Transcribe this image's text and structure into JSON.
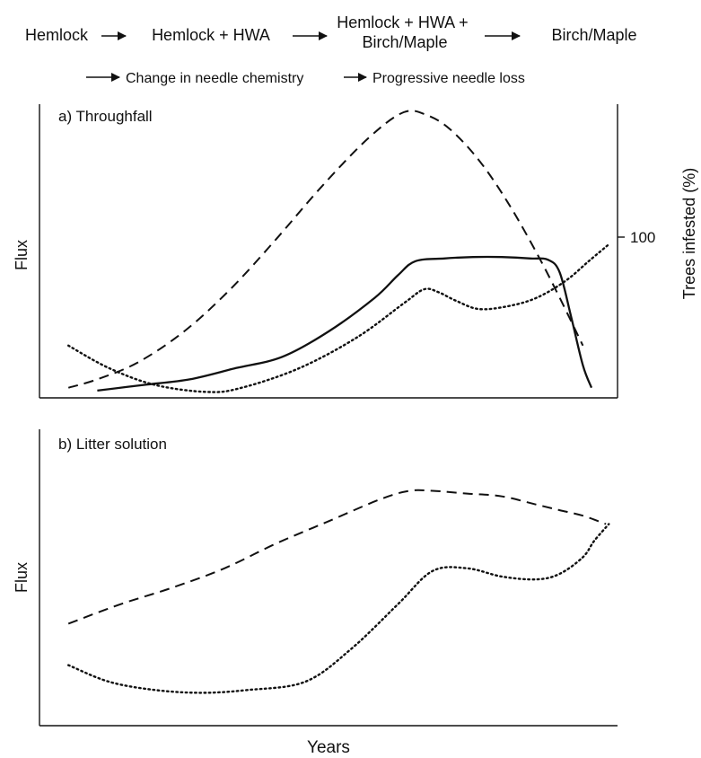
{
  "sequence": {
    "row1": [
      "Hemlock",
      "Hemlock + HWA",
      "Hemlock + HWA +|Birch/Maple",
      "Birch/Maple"
    ],
    "row2": [
      "Change in needle chemistry",
      "Progressive needle loss"
    ]
  },
  "chart_data": [
    {
      "type": "line",
      "panel_label": "a) Throughfall",
      "xlabel": "",
      "ylabel": "Flux",
      "y2label": "Trees infested (%)",
      "y2ticks": [
        100
      ],
      "xlim": [
        0,
        100
      ],
      "ylim": [
        0,
        100
      ],
      "grid": false,
      "series": [
        {
          "style": "dashed",
          "color": "#111111",
          "x": [
            5,
            10,
            17,
            25,
            33,
            41,
            49,
            57,
            63,
            67,
            71,
            76,
            81,
            86,
            90,
            94
          ],
          "y": [
            2,
            5,
            11,
            22,
            37,
            55,
            74,
            91,
            100,
            99,
            94,
            83,
            68,
            50,
            34,
            17
          ]
        },
        {
          "style": "solid",
          "color": "#111111",
          "x": [
            10,
            18,
            26,
            34,
            42,
            50,
            58,
            62,
            65,
            70,
            75,
            80,
            85,
            88,
            90,
            92,
            94,
            95.5
          ],
          "y": [
            1,
            3,
            5,
            9,
            13,
            22,
            34,
            42,
            47,
            48,
            48.5,
            48.5,
            48,
            47.5,
            43,
            27,
            10,
            2
          ]
        },
        {
          "style": "dotted",
          "color": "#111111",
          "x": [
            5,
            12,
            20,
            29,
            35,
            45,
            55,
            63,
            66.5,
            69,
            72,
            76,
            81,
            86,
            91,
            95,
            98.5
          ],
          "y": [
            17,
            9,
            3,
            0.5,
            2,
            9,
            20,
            32,
            37,
            36,
            33,
            30,
            31,
            34,
            40,
            47,
            53
          ]
        }
      ]
    },
    {
      "type": "line",
      "panel_label": "b) Litter solution",
      "xlabel": "Years",
      "ylabel": "Flux",
      "xlim": [
        0,
        100
      ],
      "ylim": [
        0,
        100
      ],
      "grid": false,
      "series": [
        {
          "style": "dashed",
          "color": "#111111",
          "x": [
            5,
            14,
            23,
            32,
            41,
            50,
            59,
            64,
            68,
            74,
            80,
            86,
            90,
            94,
            98
          ],
          "y": [
            33,
            40,
            46,
            53,
            62,
            70,
            78,
            81,
            81,
            80,
            79,
            76,
            74,
            72,
            69
          ]
        },
        {
          "style": "dotted",
          "color": "#111111",
          "x": [
            5,
            12,
            20,
            28,
            36,
            46,
            54,
            62,
            68,
            74,
            80,
            86,
            90,
            94,
            96,
            98.5
          ],
          "y": [
            18,
            12,
            9,
            8,
            9,
            12,
            24,
            40,
            52,
            53,
            50,
            49,
            51,
            57,
            63,
            69
          ]
        }
      ]
    }
  ]
}
